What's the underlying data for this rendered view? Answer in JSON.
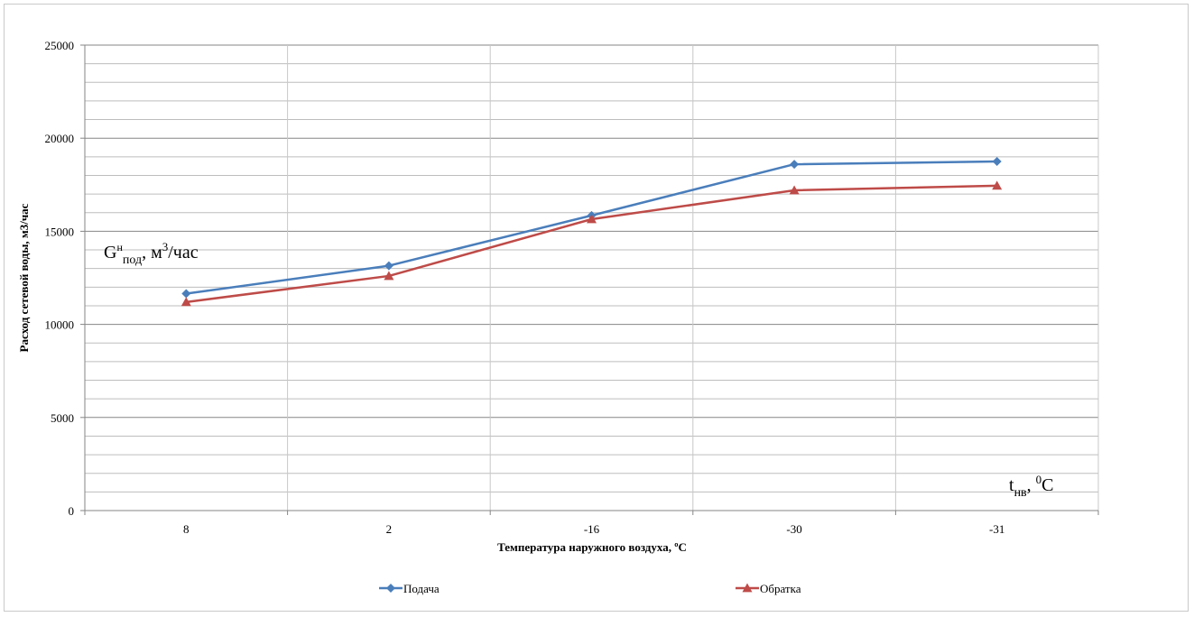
{
  "chart_data": {
    "type": "line",
    "categories": [
      "8",
      "2",
      "-16",
      "-30",
      "-31"
    ],
    "series": [
      {
        "name": "Подача",
        "values": [
          11650,
          13150,
          15850,
          18600,
          18750
        ],
        "color": "#4a7ebb",
        "marker": "diamond"
      },
      {
        "name": "Обратка",
        "values": [
          11200,
          12600,
          15650,
          17200,
          17450
        ],
        "color": "#be4b48",
        "marker": "triangle"
      }
    ],
    "title": "",
    "xlabel": "Температура  наружного воздуха, ºС",
    "ylabel": "Расход сетевой воды, м3/час",
    "ylim": [
      0,
      25000
    ],
    "yticks": [
      "0",
      "5000",
      "10000",
      "15000",
      "20000",
      "25000"
    ],
    "grid": true,
    "legend_position": "bottom",
    "annotation_y": {
      "main": "G",
      "sup": "н",
      "sub": "под",
      "rest": ", м",
      "unit_sup": "3",
      "tail": "/час"
    },
    "annotation_x": {
      "main": "t",
      "sub": "нв",
      "rest": ", ",
      "sup": "0",
      "tail": "С"
    }
  }
}
